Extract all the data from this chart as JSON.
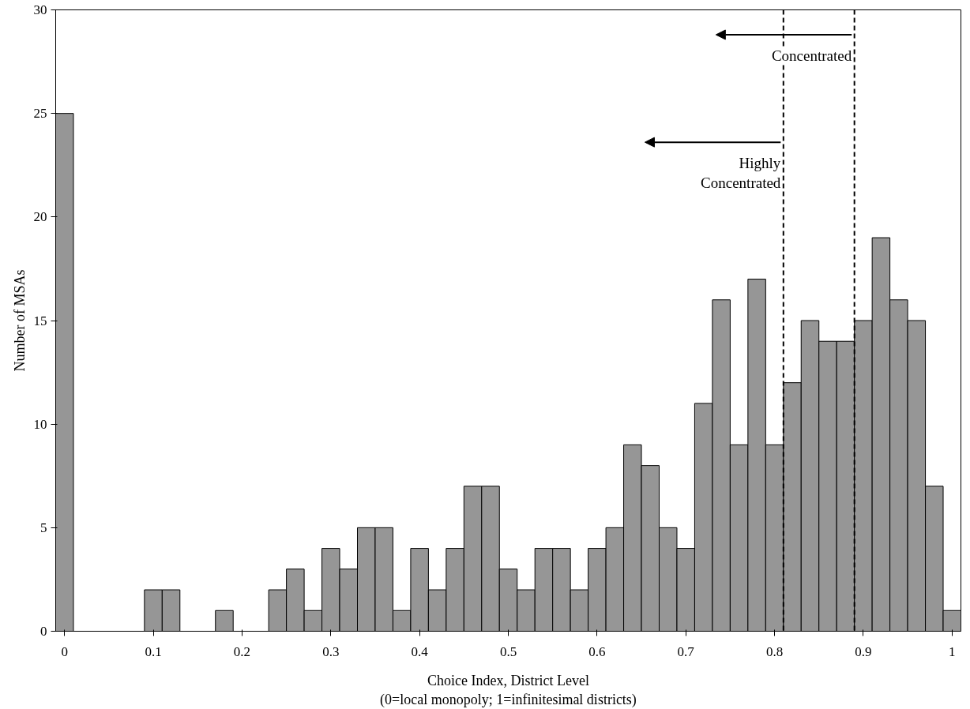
{
  "chart_data": {
    "type": "histogram",
    "xlabel": "Choice Index, District Level\n(0=local monopoly; 1=infinitesimal districts)",
    "ylabel": "Number of MSAs",
    "bins": [
      -0.01,
      0.01,
      0.03,
      0.05,
      0.07,
      0.09,
      0.11,
      0.13,
      0.15,
      0.17,
      0.19,
      0.21,
      0.23,
      0.25,
      0.27,
      0.29,
      0.31,
      0.33,
      0.35,
      0.37,
      0.39,
      0.41,
      0.43,
      0.45,
      0.47,
      0.49,
      0.51,
      0.53,
      0.55,
      0.57,
      0.59,
      0.61,
      0.63,
      0.65,
      0.67,
      0.69,
      0.71,
      0.73,
      0.75,
      0.77,
      0.79,
      0.81,
      0.83,
      0.85,
      0.87,
      0.89,
      0.91,
      0.93,
      0.95,
      0.97,
      0.99,
      1.01
    ],
    "values": [
      25,
      0,
      0,
      0,
      0,
      2,
      2,
      0,
      0,
      1,
      0,
      0,
      2,
      3,
      1,
      4,
      3,
      5,
      5,
      1,
      4,
      2,
      4,
      7,
      7,
      3,
      2,
      4,
      4,
      2,
      4,
      5,
      9,
      8,
      5,
      4,
      11,
      16,
      9,
      17,
      9,
      12,
      15,
      14,
      14,
      15,
      19,
      16,
      15,
      7,
      1
    ],
    "color": "#969696",
    "xlim": [
      -0.01,
      1.01
    ],
    "ylim": [
      0,
      30
    ],
    "xticks": [
      0,
      0.1,
      0.2,
      0.3,
      0.4,
      0.5,
      0.6,
      0.7,
      0.8,
      0.9,
      1
    ],
    "yticks": [
      0,
      5,
      10,
      15,
      20,
      25,
      30
    ],
    "grid": false,
    "ref_lines": [
      {
        "axis": "x",
        "value": 0.81,
        "label": "Highly Concentrated",
        "line_style": "dashed",
        "color": "#000000"
      },
      {
        "axis": "x",
        "value": 0.89,
        "label": "Concentrated",
        "line_style": "dashed",
        "color": "#000000"
      }
    ]
  }
}
